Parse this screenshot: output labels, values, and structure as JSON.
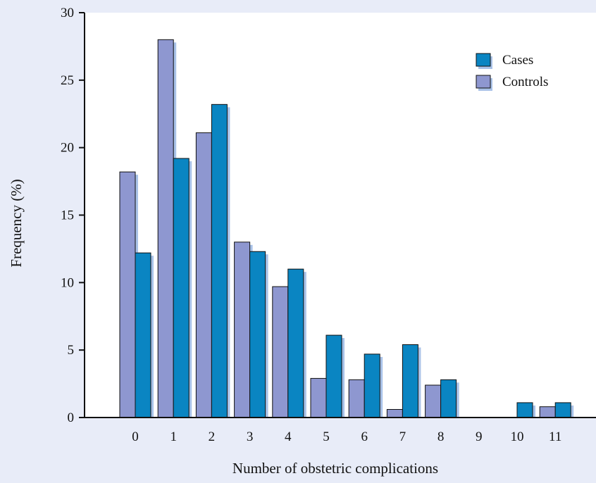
{
  "chart_data": {
    "type": "bar",
    "title": "",
    "xlabel": "Number of obstetric complications",
    "ylabel": "Frequency (%)",
    "categories": [
      "0",
      "1",
      "2",
      "3",
      "4",
      "5",
      "6",
      "7",
      "8",
      "9",
      "10",
      "11"
    ],
    "series": [
      {
        "name": "Controls",
        "values": [
          18.2,
          28.0,
          21.1,
          13.0,
          9.7,
          2.9,
          2.8,
          0.6,
          2.4,
          0,
          0,
          0.8
        ],
        "color": "#8e97d0"
      },
      {
        "name": "Cases",
        "values": [
          12.2,
          19.2,
          23.2,
          12.3,
          11.0,
          6.1,
          4.7,
          5.4,
          2.8,
          0,
          1.1,
          1.1
        ],
        "color": "#0a85c2"
      }
    ],
    "ylim": [
      0,
      30
    ],
    "yticks": [
      "0",
      "5",
      "10",
      "15",
      "20",
      "25",
      "30"
    ],
    "grid": false,
    "legend": "top-right",
    "shadow_color": "#a9c2e8",
    "background_color": "#e8ecf8",
    "plot_background_color": "#ffffff"
  }
}
